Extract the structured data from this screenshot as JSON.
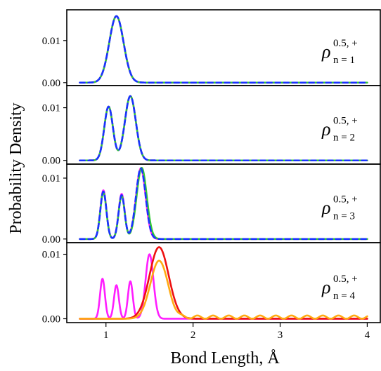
{
  "chart_data": {
    "type": "line",
    "xlabel": "Bond Length, Å",
    "ylabel": "Probability Density",
    "x_ticks": [
      "1",
      "2",
      "3",
      "4"
    ],
    "xlim": [
      0.55,
      4.15
    ],
    "colors": {
      "magenta": "#ff1eff",
      "blue": "#1a33ff",
      "green": "#33cc33",
      "red": "#ee1111",
      "orange": "#ffaa11"
    },
    "panels": [
      {
        "rho": "ρ",
        "label_sup": "0.5, +",
        "label_sub": "n = 1",
        "y_ticks": [
          "0.00",
          "0.01"
        ],
        "ylim": [
          -0.0007,
          0.0173
        ],
        "series": [
          {
            "color": "magenta",
            "dash": false,
            "peaks": [
              [
                1.12,
                0.0158,
                0.082
              ]
            ],
            "ripple": 0
          },
          {
            "color": "green",
            "dash": false,
            "peaks": [
              [
                1.12,
                0.0158,
                0.082
              ]
            ],
            "ripple": 0
          },
          {
            "color": "blue",
            "dash": true,
            "peaks": [
              [
                1.12,
                0.0158,
                0.082
              ]
            ],
            "ripple": 0
          }
        ]
      },
      {
        "rho": "ρ",
        "label_sup": "0.5, +",
        "label_sub": "n = 2",
        "y_ticks": [
          "0.00",
          "0.01"
        ],
        "ylim": [
          -0.0007,
          0.0142
        ],
        "series": [
          {
            "color": "magenta",
            "dash": false,
            "peaks": [
              [
                1.03,
                0.0102,
                0.05
              ],
              [
                1.28,
                0.0122,
                0.063
              ]
            ],
            "ripple": 0
          },
          {
            "color": "green",
            "dash": false,
            "peaks": [
              [
                1.03,
                0.0102,
                0.05
              ],
              [
                1.28,
                0.0122,
                0.063
              ]
            ],
            "ripple": 0
          },
          {
            "color": "blue",
            "dash": true,
            "peaks": [
              [
                1.03,
                0.0102,
                0.05
              ],
              [
                1.28,
                0.0122,
                0.063
              ]
            ],
            "ripple": 0
          }
        ]
      },
      {
        "rho": "ρ",
        "label_sup": "0.5, +",
        "label_sub": "n = 3",
        "y_ticks": [
          "0.00",
          "0.01"
        ],
        "ylim": [
          -0.0006,
          0.0123
        ],
        "series": [
          {
            "color": "magenta",
            "dash": false,
            "peaks": [
              [
                0.97,
                0.008,
                0.035
              ],
              [
                1.18,
                0.0074,
                0.035
              ],
              [
                1.4,
                0.0116,
                0.055
              ]
            ],
            "ripple": 0
          },
          {
            "color": "green",
            "dash": false,
            "peaks": [
              [
                0.97,
                0.0077,
                0.035
              ],
              [
                1.18,
                0.0071,
                0.035
              ],
              [
                1.41,
                0.0117,
                0.058
              ]
            ],
            "ripple": 0
          },
          {
            "color": "blue",
            "dash": true,
            "peaks": [
              [
                0.97,
                0.0078,
                0.035
              ],
              [
                1.18,
                0.0072,
                0.035
              ],
              [
                1.4,
                0.0116,
                0.056
              ]
            ],
            "ripple": 0
          }
        ]
      },
      {
        "rho": "ρ",
        "label_sup": "0.5, +",
        "label_sub": "n = 4",
        "y_ticks": [
          "0.00",
          "0.01"
        ],
        "ylim": [
          -0.0006,
          0.0118
        ],
        "series": [
          {
            "color": "magenta",
            "dash": false,
            "peaks": [
              [
                0.96,
                0.0062,
                0.028
              ],
              [
                1.12,
                0.0052,
                0.028
              ],
              [
                1.28,
                0.0058,
                0.028
              ],
              [
                1.5,
                0.01,
                0.045
              ]
            ],
            "ripple": 0
          },
          {
            "color": "red",
            "dash": false,
            "peaks": [
              [
                1.61,
                0.0111,
                0.11
              ]
            ],
            "ripple": 0
          },
          {
            "color": "orange",
            "dash": false,
            "peaks": [
              [
                1.61,
                0.009,
                0.1
              ]
            ],
            "ripple": 0.0005
          }
        ]
      }
    ]
  }
}
